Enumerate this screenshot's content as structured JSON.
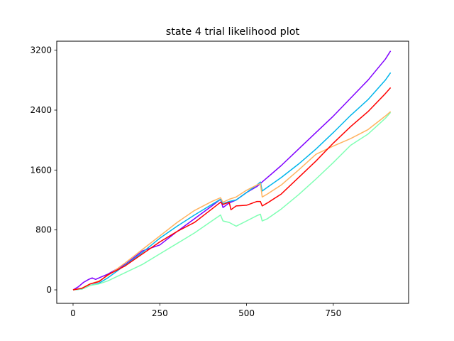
{
  "chart_data": {
    "type": "line",
    "title": "state 4 trial likelihood plot",
    "xlabel": "",
    "ylabel": "",
    "xlim": [
      -47,
      967
    ],
    "ylim": [
      -180,
      3320
    ],
    "x_ticks": [
      0,
      250,
      500,
      750
    ],
    "x_tick_labels": [
      "0",
      "250",
      "500",
      "750"
    ],
    "y_ticks": [
      0,
      800,
      1600,
      2400,
      3200
    ],
    "y_tick_labels": [
      "0",
      "800",
      "1600",
      "2400",
      "3200"
    ],
    "grid": false,
    "legend": "none",
    "series": [
      {
        "color": "#8000ff",
        "points": [
          [
            0,
            0
          ],
          [
            15,
            40
          ],
          [
            30,
            100
          ],
          [
            45,
            140
          ],
          [
            55,
            160
          ],
          [
            65,
            140
          ],
          [
            80,
            170
          ],
          [
            100,
            210
          ],
          [
            150,
            340
          ],
          [
            200,
            520
          ],
          [
            250,
            600
          ],
          [
            300,
            780
          ],
          [
            350,
            950
          ],
          [
            400,
            1120
          ],
          [
            425,
            1210
          ],
          [
            432,
            1100
          ],
          [
            450,
            1160
          ],
          [
            470,
            1200
          ],
          [
            500,
            1300
          ],
          [
            530,
            1380
          ],
          [
            540,
            1420
          ],
          [
            550,
            1460
          ],
          [
            600,
            1660
          ],
          [
            650,
            1880
          ],
          [
            700,
            2100
          ],
          [
            750,
            2320
          ],
          [
            800,
            2560
          ],
          [
            850,
            2800
          ],
          [
            900,
            3080
          ],
          [
            915,
            3190
          ]
        ]
      },
      {
        "color": "#00b5eb",
        "points": [
          [
            0,
            0
          ],
          [
            25,
            10
          ],
          [
            50,
            60
          ],
          [
            75,
            90
          ],
          [
            100,
            160
          ],
          [
            150,
            330
          ],
          [
            200,
            500
          ],
          [
            250,
            690
          ],
          [
            300,
            850
          ],
          [
            350,
            1000
          ],
          [
            400,
            1140
          ],
          [
            425,
            1210
          ],
          [
            432,
            1150
          ],
          [
            450,
            1180
          ],
          [
            470,
            1200
          ],
          [
            500,
            1300
          ],
          [
            530,
            1400
          ],
          [
            540,
            1440
          ],
          [
            545,
            1320
          ],
          [
            560,
            1370
          ],
          [
            600,
            1500
          ],
          [
            650,
            1680
          ],
          [
            700,
            1880
          ],
          [
            750,
            2100
          ],
          [
            800,
            2330
          ],
          [
            850,
            2540
          ],
          [
            900,
            2800
          ],
          [
            915,
            2900
          ]
        ]
      },
      {
        "color": "#80ffb4",
        "points": [
          [
            0,
            0
          ],
          [
            25,
            10
          ],
          [
            50,
            60
          ],
          [
            75,
            80
          ],
          [
            100,
            120
          ],
          [
            150,
            230
          ],
          [
            200,
            340
          ],
          [
            250,
            480
          ],
          [
            300,
            620
          ],
          [
            350,
            760
          ],
          [
            400,
            920
          ],
          [
            425,
            1000
          ],
          [
            432,
            920
          ],
          [
            450,
            900
          ],
          [
            470,
            850
          ],
          [
            500,
            920
          ],
          [
            530,
            990
          ],
          [
            540,
            1010
          ],
          [
            545,
            920
          ],
          [
            560,
            950
          ],
          [
            600,
            1080
          ],
          [
            650,
            1270
          ],
          [
            700,
            1480
          ],
          [
            750,
            1700
          ],
          [
            800,
            1930
          ],
          [
            850,
            2080
          ],
          [
            900,
            2290
          ],
          [
            915,
            2370
          ]
        ]
      },
      {
        "color": "#ffb360",
        "points": [
          [
            0,
            0
          ],
          [
            25,
            20
          ],
          [
            50,
            80
          ],
          [
            75,
            120
          ],
          [
            100,
            190
          ],
          [
            150,
            360
          ],
          [
            200,
            540
          ],
          [
            250,
            720
          ],
          [
            300,
            900
          ],
          [
            350,
            1060
          ],
          [
            400,
            1180
          ],
          [
            425,
            1230
          ],
          [
            432,
            1170
          ],
          [
            450,
            1210
          ],
          [
            470,
            1240
          ],
          [
            500,
            1330
          ],
          [
            530,
            1400
          ],
          [
            540,
            1420
          ],
          [
            545,
            1240
          ],
          [
            560,
            1280
          ],
          [
            600,
            1400
          ],
          [
            650,
            1600
          ],
          [
            700,
            1810
          ],
          [
            750,
            1920
          ],
          [
            800,
            2020
          ],
          [
            850,
            2140
          ],
          [
            900,
            2320
          ],
          [
            915,
            2380
          ]
        ]
      },
      {
        "color": "#ff0000",
        "points": [
          [
            0,
            0
          ],
          [
            25,
            20
          ],
          [
            50,
            80
          ],
          [
            75,
            110
          ],
          [
            100,
            200
          ],
          [
            150,
            320
          ],
          [
            200,
            480
          ],
          [
            250,
            640
          ],
          [
            300,
            780
          ],
          [
            350,
            900
          ],
          [
            400,
            1080
          ],
          [
            425,
            1170
          ],
          [
            432,
            1140
          ],
          [
            450,
            1170
          ],
          [
            455,
            1070
          ],
          [
            470,
            1120
          ],
          [
            500,
            1130
          ],
          [
            530,
            1180
          ],
          [
            540,
            1180
          ],
          [
            545,
            1120
          ],
          [
            560,
            1160
          ],
          [
            600,
            1280
          ],
          [
            650,
            1500
          ],
          [
            700,
            1720
          ],
          [
            750,
            1960
          ],
          [
            800,
            2180
          ],
          [
            850,
            2380
          ],
          [
            900,
            2620
          ],
          [
            915,
            2700
          ]
        ]
      }
    ]
  }
}
